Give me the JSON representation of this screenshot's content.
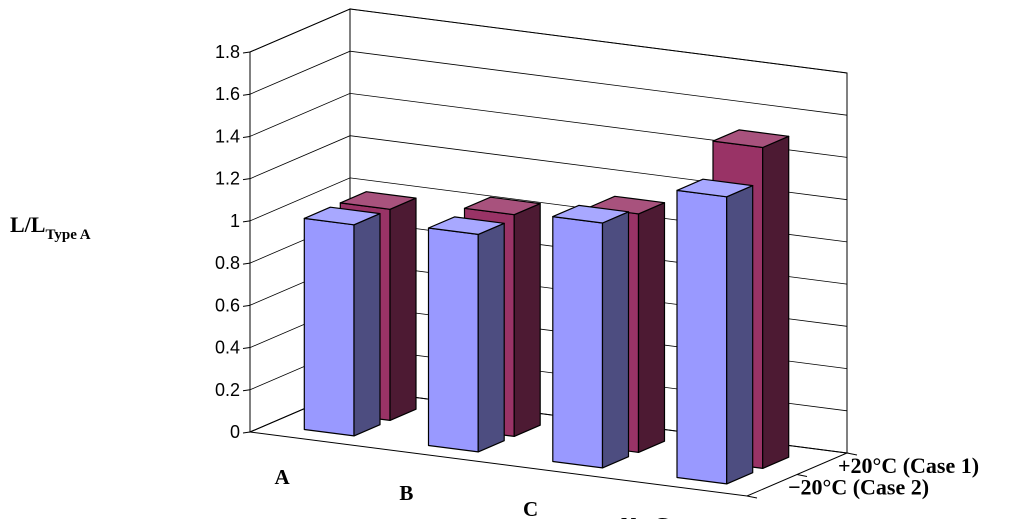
{
  "chart_data": {
    "type": "bar",
    "categories": [
      "A",
      "B",
      "C",
      "NatGas"
    ],
    "series": [
      {
        "name": "+20°C (Case 1)",
        "values": [
          1.0,
          1.05,
          1.13,
          1.52
        ],
        "color": "#993366"
      },
      {
        "name": "−20°C (Case 2)",
        "values": [
          1.0,
          1.03,
          1.16,
          1.36
        ],
        "color": "#9999ff"
      }
    ],
    "ylabel_main": "L/L",
    "ylabel_sub": "Type A",
    "ylim": [
      0,
      1.8
    ],
    "yticks": [
      "0",
      "0.2",
      "0.4",
      "0.6",
      "0.8",
      "1",
      "1.2",
      "1.4",
      "1.6",
      "1.8"
    ],
    "grid": true,
    "legend": "series labels on depth axis (right)"
  }
}
